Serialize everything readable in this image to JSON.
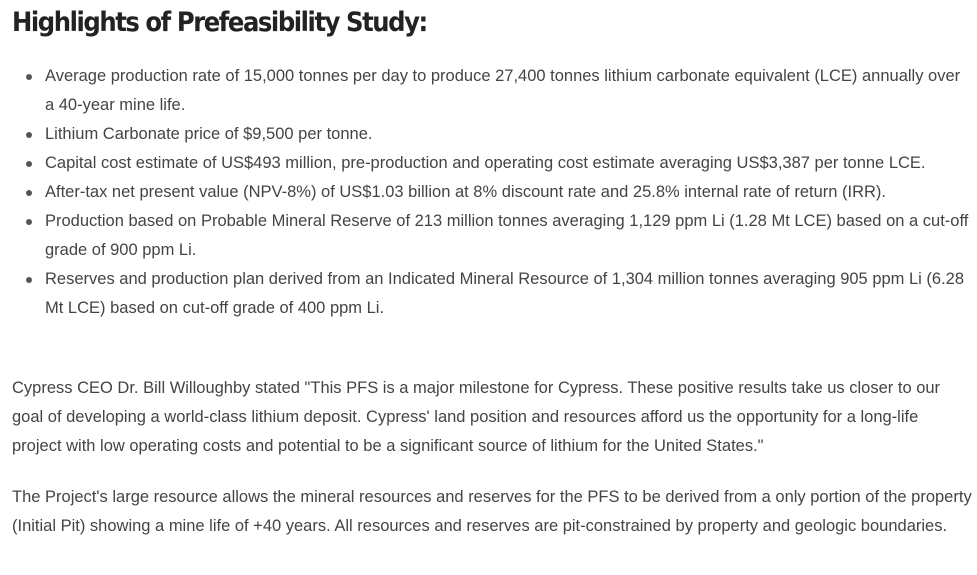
{
  "heading": "Highlights of Prefeasibility Study:",
  "bullets": [
    "Average production rate of 15,000 tonnes per day to produce 27,400 tonnes lithium carbonate equivalent (LCE) annually over a 40-year mine life.",
    "Lithium Carbonate price of $9,500 per tonne.",
    "Capital cost estimate of US$493 million, pre-production and operating cost estimate averaging US$3,387 per tonne LCE.",
    "After-tax net present value (NPV-8%) of US$1.03 billion at 8% discount rate and 25.8% internal rate of return (IRR).",
    "Production based on Probable Mineral Reserve of 213 million tonnes averaging 1,129 ppm Li (1.28 Mt LCE) based on a cut-off grade of 900 ppm Li.",
    "Reserves and production plan derived from an Indicated Mineral Resource of 1,304 million tonnes averaging 905 ppm Li (6.28 Mt LCE) based on cut-off grade of 400 ppm Li."
  ],
  "paragraphs": [
    "Cypress CEO Dr. Bill Willoughby stated \"This PFS is a major milestone for Cypress. These positive results take us closer to our goal of developing a world-class lithium deposit.  Cypress' land position and resources afford us the opportunity for a long-life project with low operating costs and potential to be a significant source of lithium for the United States.\"",
    "The Project's large resource allows the mineral resources and reserves for the PFS to be derived from a only portion of the property (Initial Pit) showing a mine life of +40 years. All resources and reserves are pit-constrained by property and geologic boundaries."
  ]
}
